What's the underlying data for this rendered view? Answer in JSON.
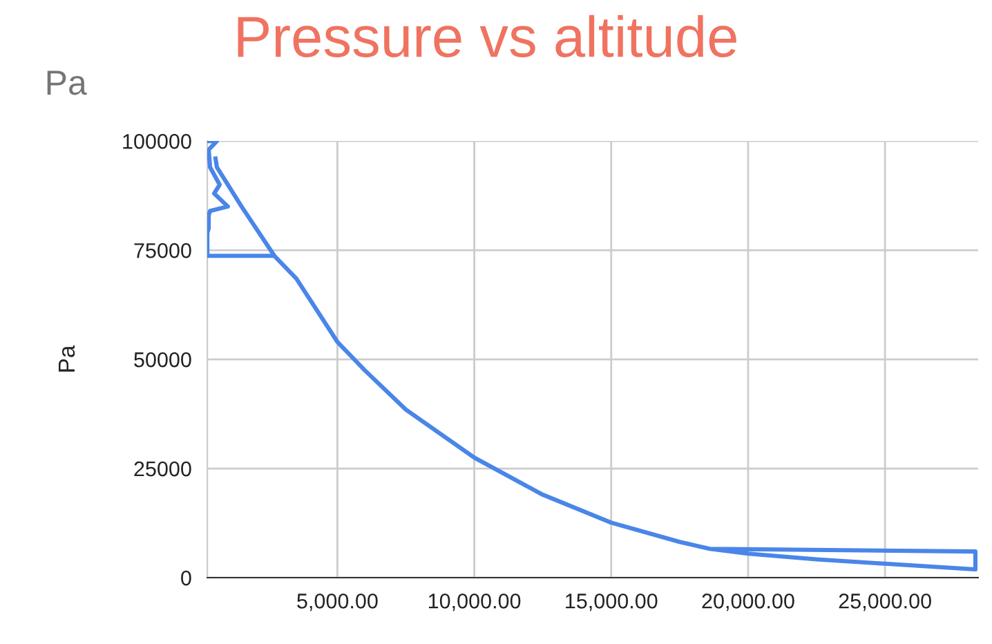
{
  "chart_data": {
    "type": "line",
    "title": "Pressure vs altitude",
    "subtitle": "Pa",
    "ylabel": "Pa",
    "series": [
      {
        "color": "#4a86e8",
        "x": [
          250,
          600,
          300,
          350,
          700,
          500,
          1000,
          350,
          300,
          300,
          250,
          250,
          2700,
          3500,
          5000,
          6000,
          7500,
          10000,
          12500,
          15000,
          17500,
          18600,
          20000,
          22500,
          25000,
          28300,
          28300,
          18600,
          17500,
          15000,
          12500,
          10000,
          7500,
          6000,
          5000,
          3500,
          2700,
          1500,
          600,
          550
        ],
        "values": [
          100000,
          100000,
          98000,
          94000,
          90000,
          88000,
          85000,
          84000,
          83000,
          80000,
          79000,
          73700,
          73700,
          68500,
          54000,
          47500,
          38500,
          27500,
          19000,
          12600,
          8200,
          6600,
          5500,
          4200,
          3200,
          1900,
          6000,
          6600,
          8200,
          12600,
          19000,
          27500,
          38500,
          47500,
          54000,
          68500,
          73700,
          85000,
          94000,
          96000
        ]
      }
    ],
    "xlim": [
      250,
      28400
    ],
    "ylim": [
      0,
      100000
    ],
    "xticks": [
      {
        "value": 5000,
        "label": "5,000.00"
      },
      {
        "value": 10000,
        "label": "10,000.00"
      },
      {
        "value": 15000,
        "label": "15,000.00"
      },
      {
        "value": 20000,
        "label": "20,000.00"
      },
      {
        "value": 25000,
        "label": "25,000.00"
      }
    ],
    "yticks": [
      0,
      25000,
      50000,
      75000,
      100000
    ],
    "grid": true,
    "marker": "none",
    "line_style": "solid"
  }
}
